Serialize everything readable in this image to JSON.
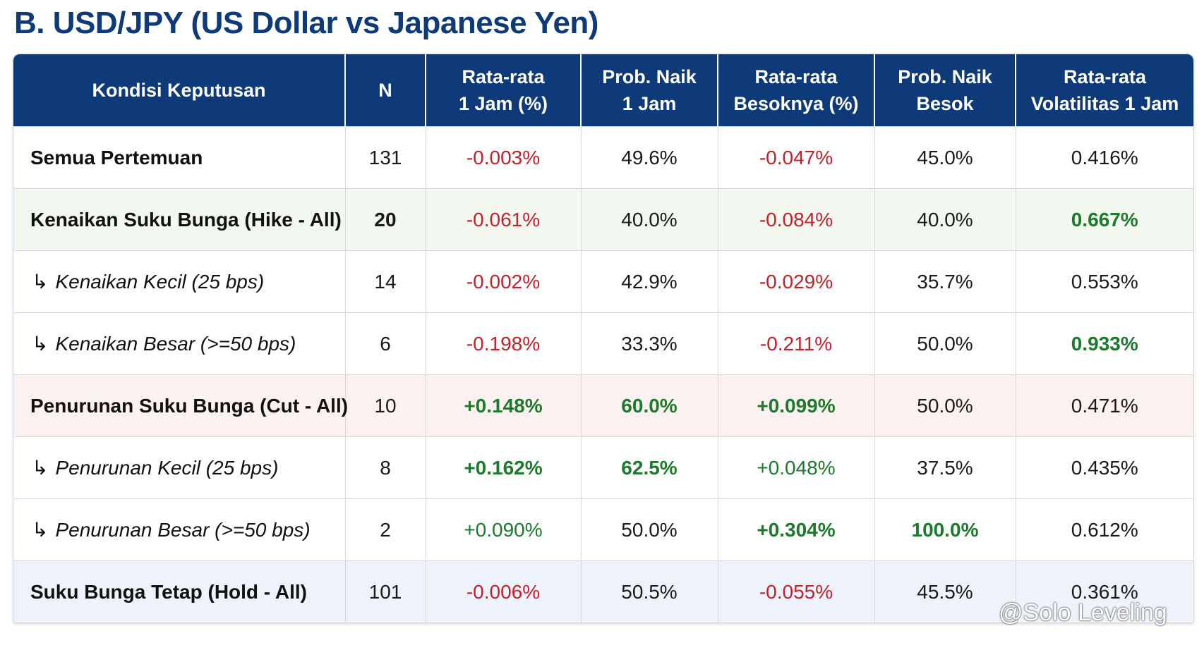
{
  "title": "B. USD/JPY (US Dollar vs Japanese Yen)",
  "watermark": "@Solo Leveling",
  "colors": {
    "header_bg": "#0f3a7a",
    "negative": "#c0212b",
    "positive": "#1d7a2c"
  },
  "chart_data": {
    "type": "table",
    "columns": [
      [
        "Kondisi Keputusan"
      ],
      [
        "N"
      ],
      [
        "Rata-rata",
        "1 Jam (%)"
      ],
      [
        "Prob. Naik",
        "1 Jam"
      ],
      [
        "Rata-rata",
        "Besoknya (%)"
      ],
      [
        "Prob. Naik",
        "Besok"
      ],
      [
        "Rata-rata",
        "Volatilitas 1 Jam"
      ]
    ],
    "rows": [
      {
        "label": "Semua Pertemuan",
        "kind": "main",
        "cells": [
          "131",
          "-0.003%",
          "49.6%",
          "-0.047%",
          "45.0%",
          "0.416%"
        ]
      },
      {
        "label": "Kenaikan Suku Bunga (Hike - All)",
        "kind": "hike",
        "cells": [
          "20",
          "-0.061%",
          "40.0%",
          "-0.084%",
          "40.0%",
          "0.667%"
        ]
      },
      {
        "label": "Kenaikan Kecil (25 bps)",
        "kind": "sub",
        "cells": [
          "14",
          "-0.002%",
          "42.9%",
          "-0.029%",
          "35.7%",
          "0.553%"
        ]
      },
      {
        "label": "Kenaikan Besar (>=50 bps)",
        "kind": "sub",
        "cells": [
          "6",
          "-0.198%",
          "33.3%",
          "-0.211%",
          "50.0%",
          "0.933%"
        ]
      },
      {
        "label": "Penurunan Suku Bunga (Cut - All)",
        "kind": "cut",
        "cells": [
          "10",
          "+0.148%",
          "60.0%",
          "+0.099%",
          "50.0%",
          "0.471%"
        ]
      },
      {
        "label": "Penurunan Kecil (25 bps)",
        "kind": "sub",
        "cells": [
          "8",
          "+0.162%",
          "62.5%",
          "+0.048%",
          "37.5%",
          "0.435%"
        ]
      },
      {
        "label": "Penurunan Besar (>=50 bps)",
        "kind": "sub",
        "cells": [
          "2",
          "+0.090%",
          "50.0%",
          "+0.304%",
          "100.0%",
          "0.612%"
        ]
      },
      {
        "label": "Suku Bunga Tetap (Hold - All)",
        "kind": "hold",
        "cells": [
          "101",
          "-0.006%",
          "50.5%",
          "-0.055%",
          "45.5%",
          "0.361%"
        ]
      }
    ],
    "cell_styles": [
      [
        "",
        "neg",
        "",
        "neg",
        "",
        ""
      ],
      [
        "b",
        "neg",
        "",
        "neg",
        "",
        "pos b"
      ],
      [
        "",
        "neg",
        "",
        "neg",
        "",
        ""
      ],
      [
        "",
        "neg",
        "",
        "neg",
        "",
        "pos b"
      ],
      [
        "",
        "pos b",
        "pos b",
        "pos b",
        "",
        ""
      ],
      [
        "",
        "pos b",
        "pos b",
        "pos",
        "",
        ""
      ],
      [
        "",
        "pos",
        "",
        "pos b",
        "pos b",
        ""
      ],
      [
        "",
        "neg",
        "",
        "neg",
        "",
        ""
      ]
    ]
  }
}
